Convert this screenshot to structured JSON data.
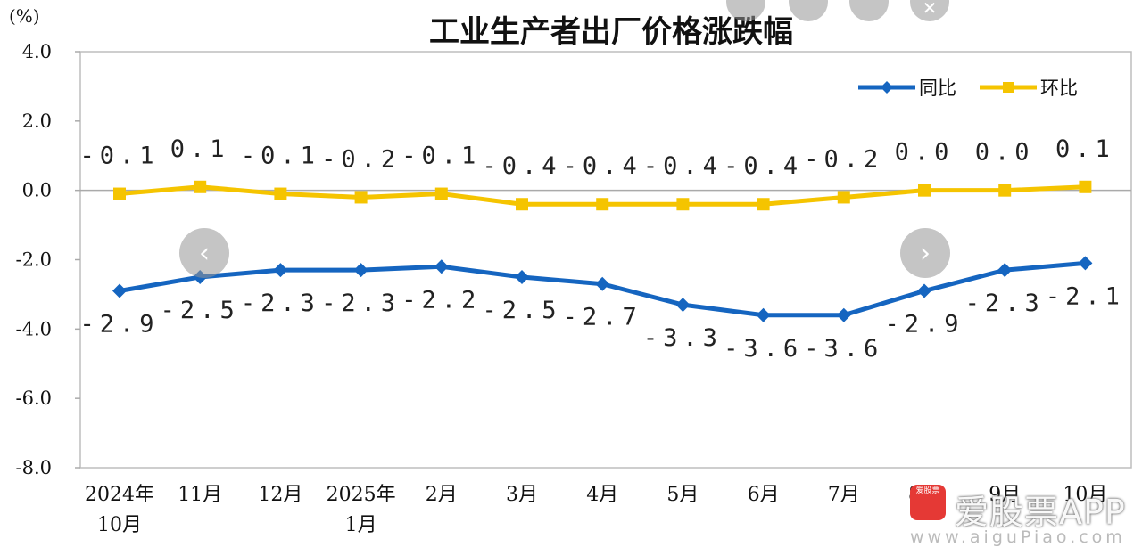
{
  "chart_data": {
    "type": "line",
    "title": "工业生产者出厂价格涨跌幅",
    "ylabel": "(%)",
    "xlabel": "",
    "ylim": [
      -8.0,
      4.0
    ],
    "yticks": [
      "4.0",
      "2.0",
      "0.0",
      "-2.0",
      "-4.0",
      "-6.0",
      "-8.0"
    ],
    "categories": [
      "2024年10月",
      "11月",
      "12月",
      "2025年1月",
      "2月",
      "3月",
      "4月",
      "5月",
      "6月",
      "7月",
      "8月",
      "9月",
      "10月"
    ],
    "category_lines": [
      [
        "2024年",
        "10月"
      ],
      [
        "11月"
      ],
      [
        "12月"
      ],
      [
        "2025年",
        "1月"
      ],
      [
        "2月"
      ],
      [
        "3月"
      ],
      [
        "4月"
      ],
      [
        "5月"
      ],
      [
        "6月"
      ],
      [
        "7月"
      ],
      [
        "8月"
      ],
      [
        "9月"
      ],
      [
        "10月"
      ]
    ],
    "series": [
      {
        "name": "同比",
        "color": "#1565c0",
        "marker": "diamond",
        "values": [
          -2.9,
          -2.5,
          -2.3,
          -2.3,
          -2.2,
          -2.5,
          -2.7,
          -3.3,
          -3.6,
          -3.6,
          -2.9,
          -2.3,
          -2.1
        ],
        "labels": [
          "-2.9",
          "-2.5",
          "-2.3",
          "-2.3",
          "-2.2",
          "-2.5",
          "-2.7",
          "-3.3",
          "-3.6",
          "-3.6",
          "-2.9",
          "-2.3",
          "-2.1"
        ]
      },
      {
        "name": "环比",
        "color": "#f5c400",
        "marker": "square",
        "values": [
          -0.1,
          0.1,
          -0.1,
          -0.2,
          -0.1,
          -0.4,
          -0.4,
          -0.4,
          -0.4,
          -0.2,
          0.0,
          0.0,
          0.1
        ],
        "labels": [
          "-0.1",
          "0.1",
          "-0.1",
          "-0.2",
          "-0.1",
          "-0.4",
          "-0.4",
          "-0.4",
          "-0.4",
          "-0.2",
          "0.0",
          "0.0",
          "0.1"
        ]
      }
    ],
    "legend_position": "top-right",
    "grid": false
  },
  "ui": {
    "top_icons": [
      "copy-icon",
      "download-icon",
      "rotate-icon",
      "close-icon"
    ],
    "prev_icon": "chevron-left-icon",
    "next_icon": "chevron-right-icon",
    "prev_glyph": "‹",
    "next_glyph": "›",
    "close_glyph": "✕"
  },
  "watermark": {
    "logo_text": "爱股票",
    "app_name": "爱股票APP",
    "url": "www.aiguPiao.com"
  }
}
